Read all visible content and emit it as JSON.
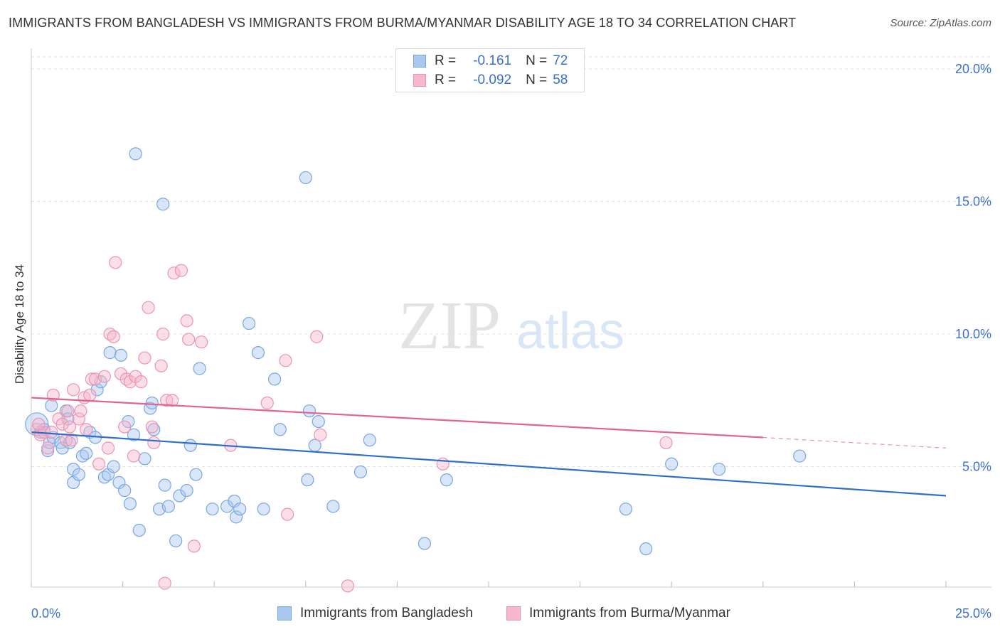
{
  "title": "IMMIGRANTS FROM BANGLADESH VS IMMIGRANTS FROM BURMA/MYANMAR DISABILITY AGE 18 TO 34 CORRELATION CHART",
  "source": "Source: ZipAtlas.com",
  "watermark": {
    "zip": "ZIP",
    "atlas": "atlas"
  },
  "legend": {
    "r_label": "R =",
    "n_label": "N =",
    "rows": [
      {
        "r": "-0.161",
        "n": "72"
      },
      {
        "r": "-0.092",
        "n": "58"
      }
    ]
  },
  "colors": {
    "blue_fill": "#a8c8f0",
    "blue_stroke": "#7aa6e0",
    "blue_line": "#2f6fcc",
    "pink_fill": "#f5b8cc",
    "pink_stroke": "#ec93b1",
    "pink_line": "#e0648f",
    "axis_text": "#3a6fcf",
    "grid": "#e2e2e2"
  },
  "chart_data": {
    "type": "scatter",
    "title": "IMMIGRANTS FROM BANGLADESH VS IMMIGRANTS FROM BURMA/MYANMAR DISABILITY AGE 18 TO 34 CORRELATION CHART",
    "xlabel": "",
    "ylabel": "Disability Age 18 to 34",
    "xlim": [
      0,
      25
    ],
    "ylim": [
      0,
      20
    ],
    "x_tick_labels": [
      "0.0%",
      "25.0%"
    ],
    "y_ticks": [
      5,
      10,
      15,
      20
    ],
    "y_tick_labels": [
      "5.0%",
      "10.0%",
      "15.0%",
      "20.0%"
    ],
    "grid": true,
    "legend_position": "top-center",
    "series": [
      {
        "name": "Immigrants from Bangladesh",
        "color": "blue",
        "trend": {
          "x": [
            0,
            25
          ],
          "y": [
            6.3,
            3.9
          ]
        },
        "points": [
          [
            0.15,
            6.6
          ],
          [
            0.25,
            6.3
          ],
          [
            0.35,
            6.4
          ],
          [
            0.45,
            5.6
          ],
          [
            0.5,
            5.9
          ],
          [
            0.6,
            6.1
          ],
          [
            0.8,
            5.9
          ],
          [
            0.85,
            5.7
          ],
          [
            0.55,
            7.3
          ],
          [
            0.95,
            7.1
          ],
          [
            1.05,
            5.9
          ],
          [
            1.15,
            4.4
          ],
          [
            1.15,
            4.9
          ],
          [
            1.3,
            4.7
          ],
          [
            1.4,
            5.4
          ],
          [
            1.5,
            5.5
          ],
          [
            1.6,
            6.3
          ],
          [
            1.75,
            6.1
          ],
          [
            1.8,
            7.9
          ],
          [
            1.9,
            8.2
          ],
          [
            2.0,
            4.6
          ],
          [
            2.1,
            4.7
          ],
          [
            2.15,
            9.3
          ],
          [
            2.25,
            5.0
          ],
          [
            2.4,
            4.4
          ],
          [
            2.45,
            9.2
          ],
          [
            2.55,
            4.1
          ],
          [
            2.65,
            6.7
          ],
          [
            2.7,
            3.6
          ],
          [
            2.8,
            6.2
          ],
          [
            2.85,
            16.8
          ],
          [
            2.95,
            2.6
          ],
          [
            3.1,
            5.3
          ],
          [
            3.25,
            7.2
          ],
          [
            3.3,
            7.4
          ],
          [
            3.35,
            6.4
          ],
          [
            3.5,
            3.4
          ],
          [
            3.6,
            14.9
          ],
          [
            3.65,
            4.3
          ],
          [
            3.75,
            3.5
          ],
          [
            3.95,
            2.2
          ],
          [
            4.05,
            3.9
          ],
          [
            4.25,
            4.1
          ],
          [
            4.35,
            5.8
          ],
          [
            4.5,
            4.7
          ],
          [
            4.6,
            8.7
          ],
          [
            4.95,
            3.4
          ],
          [
            5.35,
            3.5
          ],
          [
            5.55,
            3.7
          ],
          [
            5.6,
            3.1
          ],
          [
            5.7,
            3.4
          ],
          [
            5.95,
            10.4
          ],
          [
            6.2,
            9.3
          ],
          [
            6.35,
            3.4
          ],
          [
            6.65,
            8.3
          ],
          [
            6.8,
            6.4
          ],
          [
            7.5,
            15.9
          ],
          [
            7.55,
            4.5
          ],
          [
            7.6,
            7.1
          ],
          [
            7.75,
            5.8
          ],
          [
            7.85,
            6.7
          ],
          [
            8.25,
            3.5
          ],
          [
            9.0,
            4.8
          ],
          [
            9.25,
            6.0
          ],
          [
            10.75,
            2.1
          ],
          [
            11.35,
            4.5
          ],
          [
            16.25,
            3.4
          ],
          [
            16.8,
            1.9
          ],
          [
            17.5,
            5.1
          ],
          [
            18.8,
            4.9
          ],
          [
            21.0,
            5.4
          ],
          [
            1.0,
            6.8
          ]
        ]
      },
      {
        "name": "Immigrants from Burma/Myanmar",
        "color": "pink",
        "trend": {
          "x": [
            0,
            20
          ],
          "y": [
            7.6,
            6.1
          ]
        },
        "trend_dashed": {
          "x": [
            20,
            25
          ],
          "y": [
            6.1,
            5.7
          ]
        },
        "points": [
          [
            0.15,
            6.4
          ],
          [
            0.25,
            6.2
          ],
          [
            0.35,
            6.3
          ],
          [
            0.45,
            5.7
          ],
          [
            0.55,
            6.3
          ],
          [
            0.6,
            7.7
          ],
          [
            0.75,
            6.8
          ],
          [
            0.85,
            6.6
          ],
          [
            0.95,
            6.0
          ],
          [
            1.0,
            7.1
          ],
          [
            1.05,
            6.5
          ],
          [
            1.1,
            6.0
          ],
          [
            1.15,
            7.9
          ],
          [
            1.3,
            6.8
          ],
          [
            1.35,
            7.1
          ],
          [
            1.45,
            7.6
          ],
          [
            1.5,
            6.4
          ],
          [
            1.6,
            7.7
          ],
          [
            1.65,
            8.3
          ],
          [
            1.75,
            8.3
          ],
          [
            1.85,
            5.1
          ],
          [
            2.0,
            8.4
          ],
          [
            2.1,
            5.7
          ],
          [
            2.15,
            10.0
          ],
          [
            2.25,
            9.9
          ],
          [
            2.3,
            12.7
          ],
          [
            2.45,
            8.5
          ],
          [
            2.55,
            6.5
          ],
          [
            2.6,
            8.3
          ],
          [
            2.7,
            8.2
          ],
          [
            2.8,
            5.4
          ],
          [
            2.85,
            8.4
          ],
          [
            3.0,
            8.2
          ],
          [
            3.1,
            9.1
          ],
          [
            3.2,
            11.0
          ],
          [
            3.3,
            6.5
          ],
          [
            3.35,
            5.9
          ],
          [
            3.55,
            8.8
          ],
          [
            3.6,
            10.0
          ],
          [
            3.7,
            7.5
          ],
          [
            3.85,
            7.5
          ],
          [
            3.9,
            12.3
          ],
          [
            4.1,
            12.4
          ],
          [
            4.25,
            10.5
          ],
          [
            4.3,
            9.8
          ],
          [
            4.45,
            2.0
          ],
          [
            4.65,
            9.7
          ],
          [
            5.45,
            5.8
          ],
          [
            3.65,
            0.6
          ],
          [
            6.45,
            7.4
          ],
          [
            6.95,
            9.0
          ],
          [
            7.0,
            3.2
          ],
          [
            7.8,
            9.9
          ],
          [
            7.9,
            6.2
          ],
          [
            8.65,
            0.5
          ],
          [
            11.25,
            5.1
          ],
          [
            0.2,
            6.6
          ],
          [
            17.35,
            5.9
          ]
        ]
      }
    ]
  }
}
